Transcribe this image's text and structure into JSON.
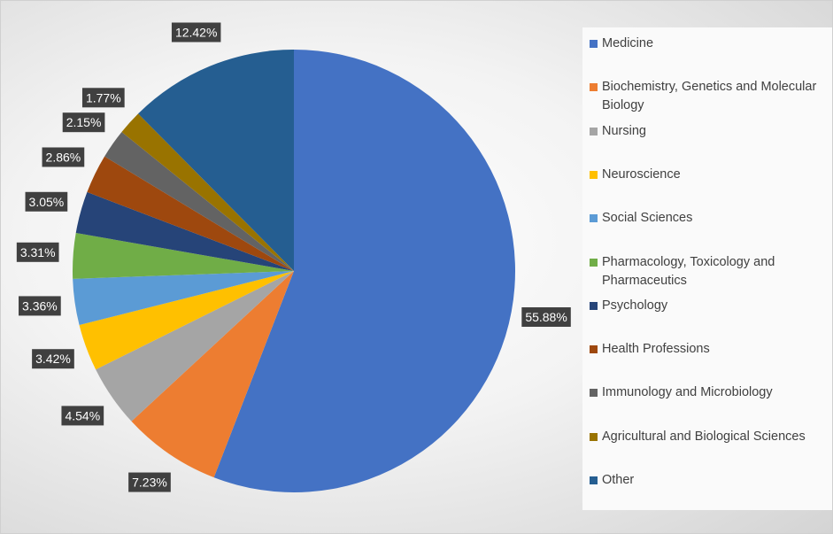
{
  "chart_data": {
    "type": "pie",
    "categories": [
      "Medicine",
      "Biochemistry, Genetics and Molecular Biology",
      "Nursing",
      "Neuroscience",
      "Social Sciences",
      "Pharmacology, Toxicology and Pharmaceutics",
      "Psychology",
      "Health Professions",
      "Immunology and Microbiology",
      "Agricultural and Biological Sciences",
      "Other"
    ],
    "values": [
      55.88,
      7.23,
      4.54,
      3.42,
      3.36,
      3.31,
      3.05,
      2.86,
      2.15,
      1.77,
      12.42
    ],
    "value_labels": [
      "55.88%",
      "7.23%",
      "4.54%",
      "3.42%",
      "3.36%",
      "3.31%",
      "3.05%",
      "2.86%",
      "2.15%",
      "1.77%",
      "12.42%"
    ],
    "colors": [
      "#4472c4",
      "#ed7d31",
      "#a5a5a5",
      "#ffc000",
      "#5b9bd5",
      "#70ad47",
      "#264478",
      "#9e480e",
      "#636363",
      "#997300",
      "#255e91"
    ],
    "legend": "right"
  }
}
